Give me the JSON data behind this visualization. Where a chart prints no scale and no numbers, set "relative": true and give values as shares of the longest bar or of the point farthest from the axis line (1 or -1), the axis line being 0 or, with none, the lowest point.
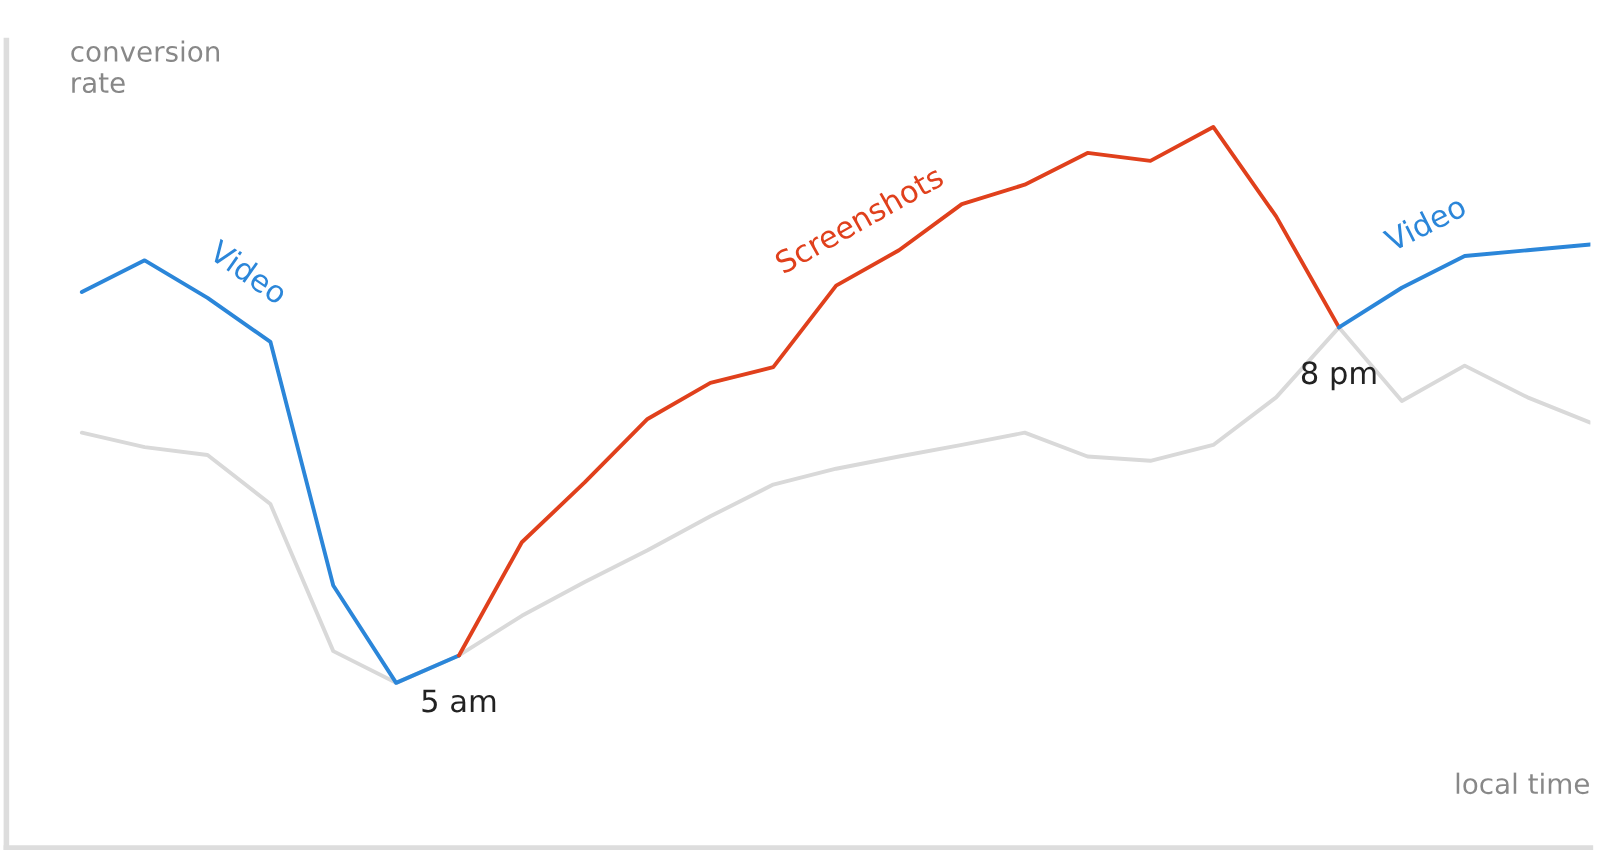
{
  "chart_data": {
    "type": "line",
    "relative": true,
    "ylabel": "conversion\nrate",
    "xlabel": "local time",
    "categories": [
      null,
      null,
      null,
      null,
      null,
      null,
      null,
      null,
      null,
      null,
      null,
      null,
      null,
      null,
      null,
      null,
      null,
      null,
      null,
      null,
      null,
      null,
      null,
      null,
      null
    ],
    "series": [
      {
        "name": "Video",
        "color": "#2b86d9",
        "values": [
          0.771,
          0.815,
          0.763,
          0.702,
          0.364,
          0.229,
          0.267,
          null,
          null,
          null,
          null,
          null,
          null,
          null,
          null,
          null,
          null,
          null,
          null,
          null,
          null,
          null,
          null,
          null,
          null
        ]
      },
      {
        "name": "Screenshots",
        "color": "#e0401c",
        "values": [
          null,
          null,
          null,
          null,
          null,
          null,
          0.267,
          0.424,
          0.507,
          0.595,
          0.645,
          0.667,
          0.78,
          0.829,
          0.893,
          0.92,
          0.964,
          0.953,
          1.0,
          0.876,
          0.722,
          null,
          null,
          null,
          null
        ]
      },
      {
        "name": "Video",
        "color": "#2b86d9",
        "values": [
          null,
          null,
          null,
          null,
          null,
          null,
          null,
          null,
          null,
          null,
          null,
          null,
          null,
          null,
          null,
          null,
          null,
          null,
          null,
          null,
          0.722,
          0.777,
          0.821,
          0.829,
          0.837
        ]
      },
      {
        "color": "#d9d9d9",
        "values": [
          0.576,
          0.556,
          0.545,
          0.477,
          0.273,
          0.229,
          0.267,
          0.322,
          0.369,
          0.413,
          0.46,
          0.504,
          0.526,
          0.543,
          0.559,
          0.576,
          0.543,
          0.537,
          0.559,
          0.625,
          0.722,
          0.62,
          0.669,
          0.625,
          0.59
        ]
      }
    ],
    "annotations": [
      "5 am",
      "8 pm"
    ],
    "legend": false,
    "marker": "none",
    "line_style": "solid"
  }
}
